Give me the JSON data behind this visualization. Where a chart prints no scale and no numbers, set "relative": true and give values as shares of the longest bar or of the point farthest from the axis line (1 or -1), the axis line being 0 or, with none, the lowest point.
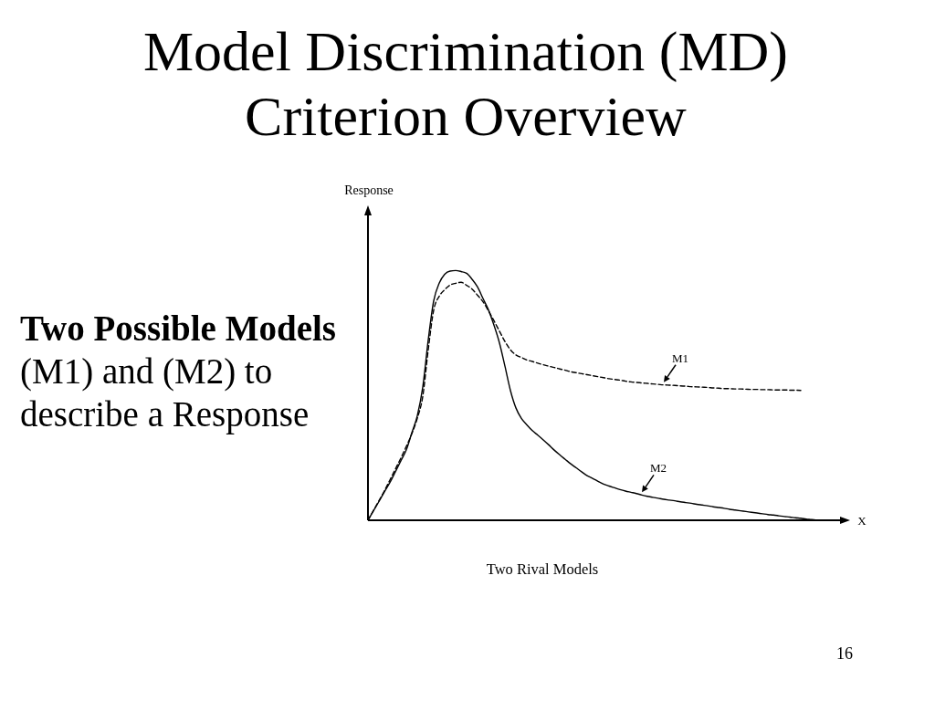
{
  "chart_data": {
    "type": "line",
    "title": "Model Discrimination (MD) Criterion Overview",
    "xlabel": "X",
    "relative": true,
    "tick_labels": false,
    "marker": "none",
    "annotations": [
      "Two Possible Models",
      "(M1) and (M2) to describe a Response",
      "Two Rival Models",
      "16",
      "Response"
    ],
    "categories": [
      null,
      null,
      null,
      null,
      null,
      null,
      null,
      null,
      null,
      null,
      null,
      null,
      null,
      null,
      null,
      null,
      null,
      null,
      null,
      null,
      null,
      null,
      null,
      null,
      null,
      null,
      null,
      null,
      null,
      null,
      null,
      null,
      null,
      null,
      null,
      null,
      null,
      null,
      null,
      null,
      null,
      null,
      null,
      null,
      null,
      null,
      null,
      null,
      null,
      null,
      null,
      null,
      null,
      null,
      null,
      null,
      null,
      null,
      null,
      null,
      null,
      null,
      null,
      null,
      null,
      null,
      null,
      null,
      null,
      null,
      null,
      null,
      null,
      null,
      null,
      null,
      null,
      null,
      null,
      null,
      null,
      null,
      null
    ],
    "series": [
      {
        "name": "M1",
        "color": "#000000",
        "line_style": "dashed",
        "values": [
          0,
          0.039,
          0.078,
          0.118,
          0.161,
          0.205,
          0.249,
          0.296,
          0.346,
          0.408,
          0.496,
          0.683,
          0.842,
          0.897,
          0.923,
          0.942,
          0.949,
          0.953,
          0.941,
          0.926,
          0.901,
          0.875,
          0.838,
          0.799,
          0.757,
          0.716,
          0.683,
          0.662,
          0.652,
          0.642,
          0.636,
          0.629,
          0.623,
          0.617,
          0.612,
          0.606,
          0.601,
          0.595,
          0.591,
          0.587,
          0.583,
          0.579,
          0.575,
          0.571,
          0.567,
          0.564,
          0.561,
          0.557,
          0.554,
          0.552,
          0.55,
          0.548,
          0.546,
          0.544,
          0.542,
          0.541,
          0.54,
          0.538,
          0.537,
          0.535,
          0.534,
          0.533,
          0.532,
          0.53,
          0.529,
          0.527,
          0.527,
          0.526,
          0.526,
          0.525,
          0.524,
          0.524,
          0.523,
          0.523,
          0.522,
          0.522,
          0.522,
          0.521,
          0.521,
          0.52,
          null,
          null,
          null
        ]
      },
      {
        "name": "M2",
        "color": "#000000",
        "line_style": "solid",
        "values": [
          0,
          0.038,
          0.075,
          0.114,
          0.151,
          0.194,
          0.238,
          0.282,
          0.35,
          0.418,
          0.533,
          0.722,
          0.879,
          0.949,
          0.985,
          0.998,
          1,
          0.996,
          0.989,
          0.965,
          0.934,
          0.888,
          0.842,
          0.781,
          0.71,
          0.617,
          0.52,
          0.45,
          0.408,
          0.382,
          0.359,
          0.341,
          0.322,
          0.302,
          0.281,
          0.262,
          0.244,
          0.226,
          0.21,
          0.194,
          0.179,
          0.168,
          0.156,
          0.145,
          0.137,
          0.13,
          0.123,
          0.117,
          0.112,
          0.107,
          0.101,
          0.096,
          0.092,
          0.088,
          0.084,
          0.081,
          0.078,
          0.074,
          0.071,
          0.068,
          0.064,
          0.061,
          0.058,
          0.054,
          0.051,
          0.048,
          0.044,
          0.041,
          0.038,
          0.035,
          0.032,
          0.029,
          0.026,
          0.023,
          0.021,
          0.018,
          0.015,
          0.013,
          0.01,
          0.008,
          0.005,
          0.003,
          0
        ]
      }
    ]
  }
}
